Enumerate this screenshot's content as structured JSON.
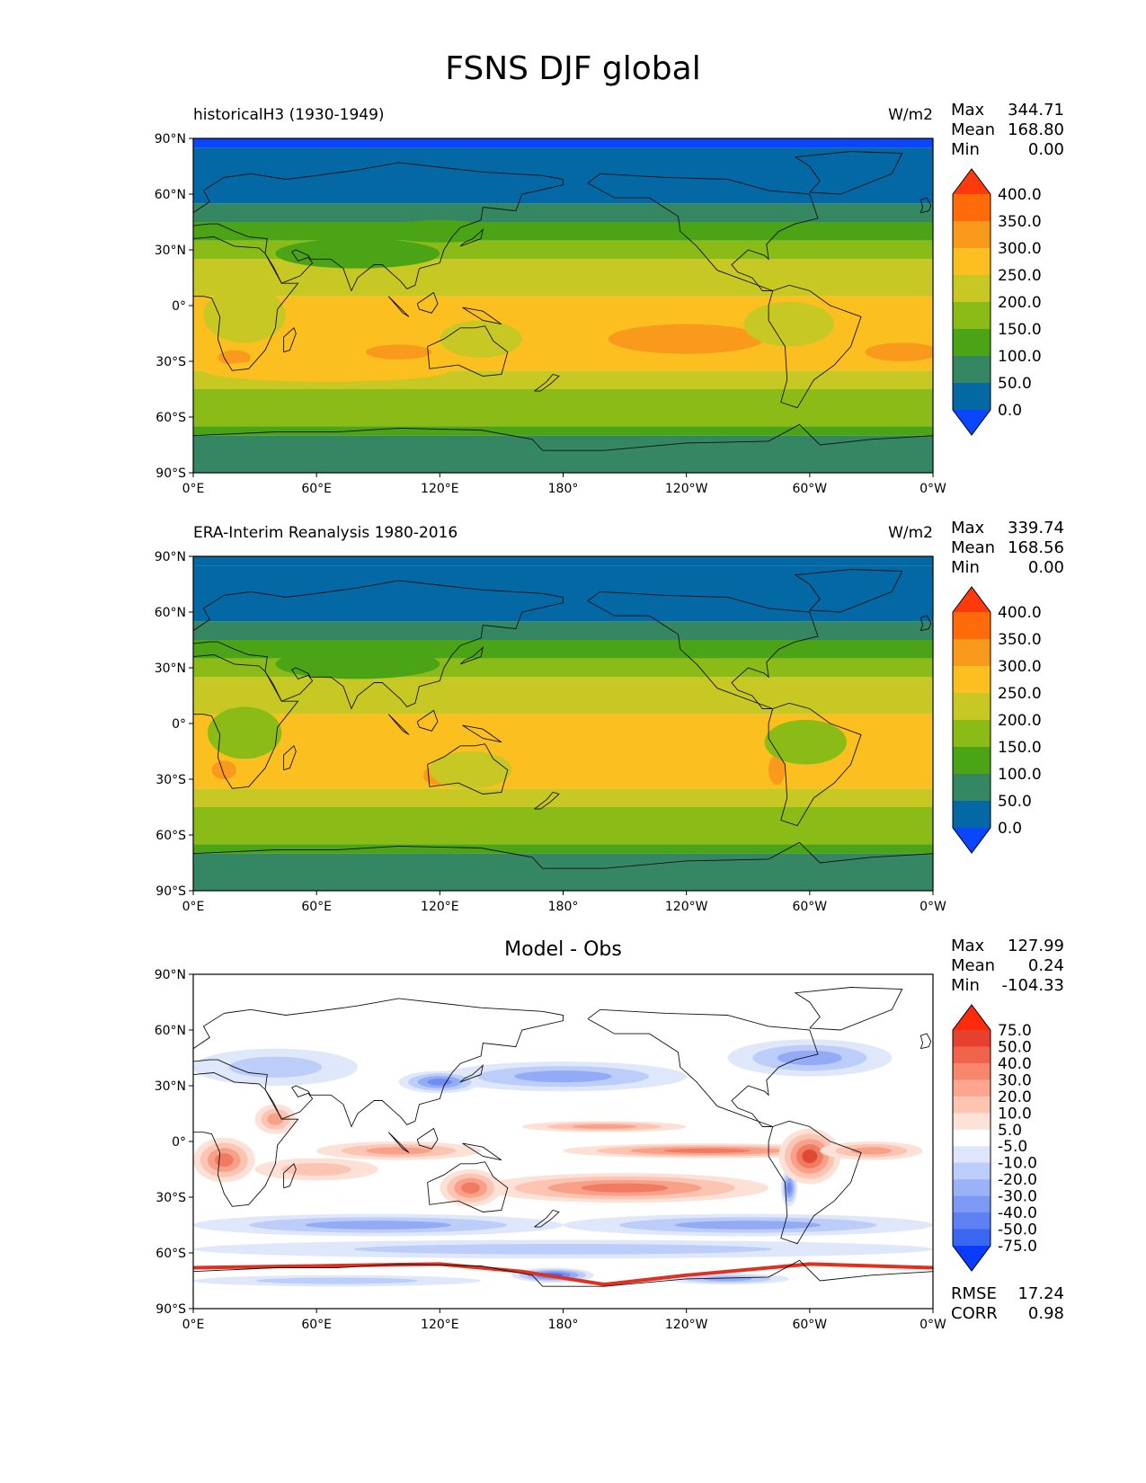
{
  "figure_title": "FSNS DJF global",
  "axes": {
    "lat_ticks": [
      "90°N",
      "60°N",
      "30°N",
      "0°",
      "30°S",
      "60°S",
      "90°S"
    ],
    "lon_ticks": [
      "0°E",
      "60°E",
      "120°E",
      "180°",
      "120°W",
      "60°W",
      "0°W"
    ]
  },
  "panels": [
    {
      "title_left": "historicalH3 (1930-1949)",
      "title_center": "",
      "units": "W/m2",
      "stats": [
        {
          "label": "Max",
          "value": "344.71"
        },
        {
          "label": "Mean",
          "value": "168.80"
        },
        {
          "label": "Min",
          "value": "0.00"
        }
      ],
      "colorbar": {
        "labels": [
          "400.0",
          "350.0",
          "300.0",
          "250.0",
          "200.0",
          "150.0",
          "100.0",
          "50.0",
          "0.0"
        ],
        "colors": [
          "#ff3a0a",
          "#ff6a0a",
          "#fa9a1c",
          "#fbbf1f",
          "#c8c825",
          "#8bbb17",
          "#4ba416",
          "#358763",
          "#0468a5",
          "#0a45ff"
        ]
      }
    },
    {
      "title_left": "ERA-Interim Reanalysis 1980-2016",
      "title_center": "",
      "units": "W/m2",
      "stats": [
        {
          "label": "Max",
          "value": "339.74"
        },
        {
          "label": "Mean",
          "value": "168.56"
        },
        {
          "label": "Min",
          "value": "0.00"
        }
      ],
      "colorbar": {
        "labels": [
          "400.0",
          "350.0",
          "300.0",
          "250.0",
          "200.0",
          "150.0",
          "100.0",
          "50.0",
          "0.0"
        ],
        "colors": [
          "#ff3a0a",
          "#ff6a0a",
          "#fa9a1c",
          "#fbbf1f",
          "#c8c825",
          "#8bbb17",
          "#4ba416",
          "#358763",
          "#0468a5",
          "#0a45ff"
        ]
      }
    },
    {
      "title_left": "",
      "title_center": "Model - Obs",
      "units": "",
      "stats": [
        {
          "label": "Max",
          "value": "127.99"
        },
        {
          "label": "Mean",
          "value": "0.24"
        },
        {
          "label": "Min",
          "value": "-104.33"
        }
      ],
      "bottom_stats": [
        {
          "label": "RMSE",
          "value": "17.24"
        },
        {
          "label": "CORR",
          "value": "0.98"
        }
      ],
      "colorbar": {
        "labels": [
          "75.0",
          "50.0",
          "40.0",
          "30.0",
          "20.0",
          "10.0",
          "5.0",
          "-5.0",
          "-10.0",
          "-20.0",
          "-30.0",
          "-40.0",
          "-50.0",
          "-75.0"
        ],
        "colors": [
          "#ff2a0a",
          "#e6402e",
          "#f0644c",
          "#f8866c",
          "#fca690",
          "#fdc4b2",
          "#fee2d8",
          "#ffffff",
          "#dde6fb",
          "#bccdfa",
          "#9ab3f7",
          "#7c9af5",
          "#5d81f3",
          "#3a66f2",
          "#0a3cff"
        ]
      }
    }
  ]
}
